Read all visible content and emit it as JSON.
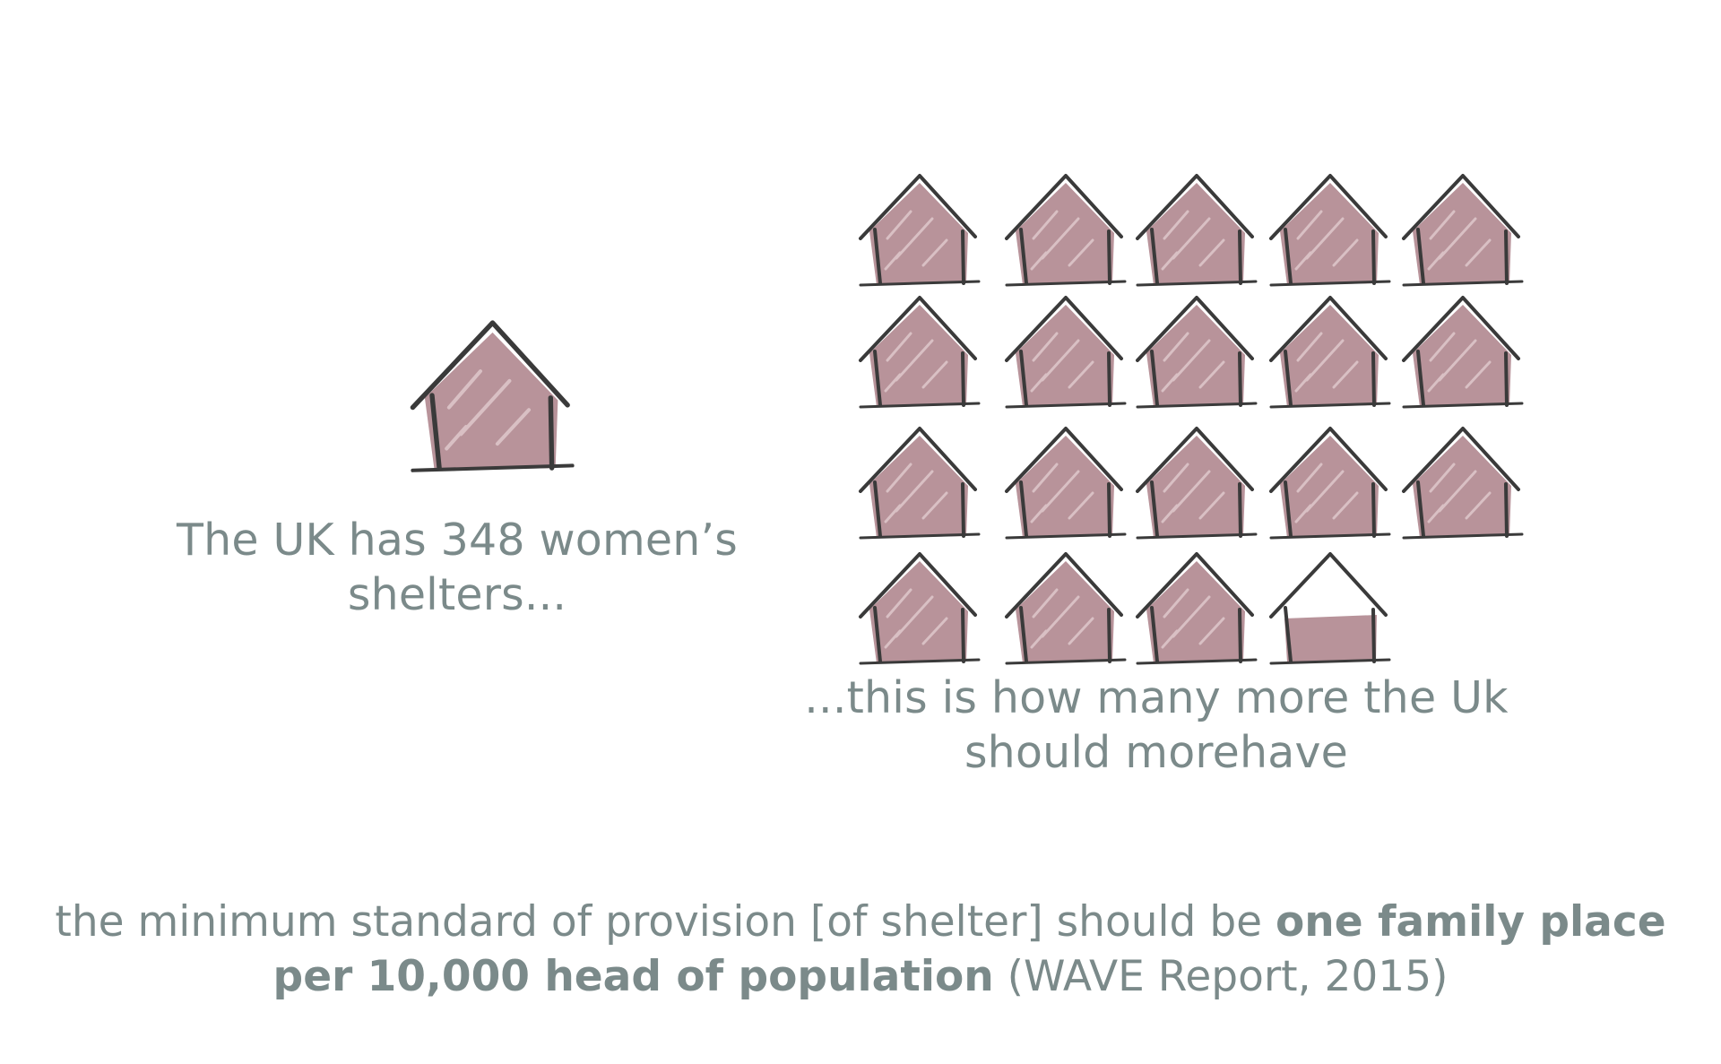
{
  "left_panel": {
    "caption_line1": "The UK has 348 women’s",
    "caption_line2": "shelters..."
  },
  "right_panel": {
    "caption_line1": "...this is how many more the Uk",
    "caption_line2": "should  morehave",
    "houses_full": 18,
    "houses_partial_fill": 0.45
  },
  "footer": {
    "line1_regular": "the minimum standard of provision [of shelter] should be ",
    "line1_bold": "one family place",
    "line2_bold": "per 10,000 head of population",
    "line2_regular": " (WAVE Report, 2015)"
  },
  "colors": {
    "house_fill": "#b8939a",
    "house_outline": "#3a3a3a",
    "text": "#7b8a8a"
  }
}
